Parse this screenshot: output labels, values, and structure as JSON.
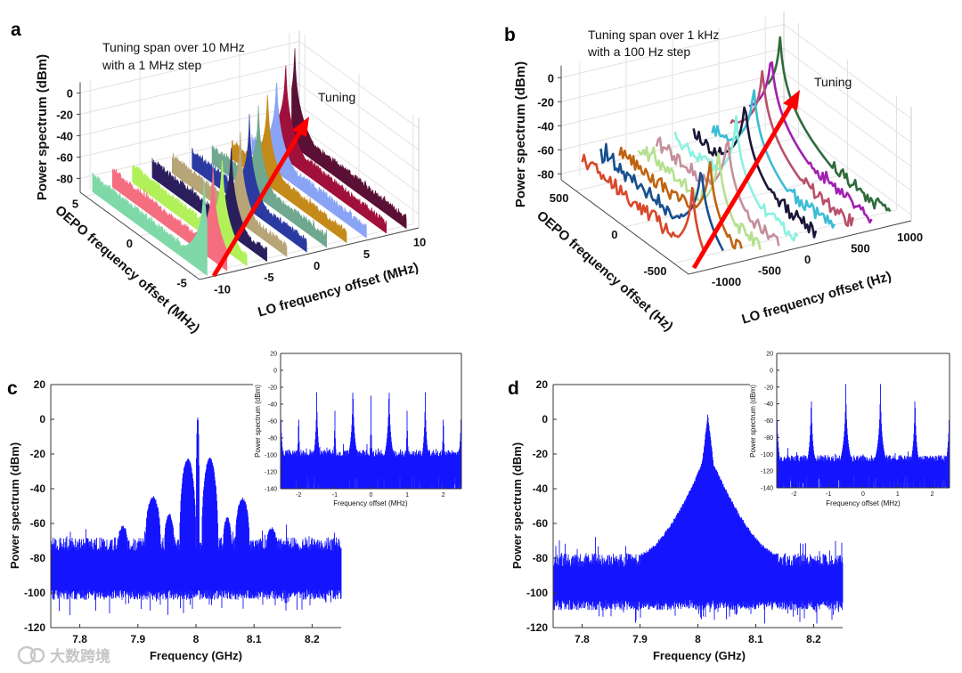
{
  "panel_labels": {
    "a": "a",
    "b": "b",
    "c": "c",
    "d": "d"
  },
  "watermark": "大数跨境",
  "chart_data": [
    {
      "id": "a",
      "type": "line",
      "style": "3d-waterfall-filled",
      "annotation_lines": [
        "Tuning span over 10 MHz",
        "with a 1 MHz step"
      ],
      "arrow_label": "Tuning",
      "zlabel": "Power spectrum (dBm)",
      "ylabel": "OEPO frequency offset (MHz)",
      "xlabel": "LO frequency offset (MHz)",
      "zticks": [
        0,
        -20,
        -40,
        -60,
        -80
      ],
      "yticks": [
        5,
        0,
        -5
      ],
      "xticks": [
        -10,
        -5,
        0,
        5,
        10
      ],
      "xlim": [
        -11,
        11
      ],
      "ylim": [
        -5.5,
        5.5
      ],
      "zlim": [
        -93,
        10
      ],
      "series": [
        {
          "lo": -10,
          "peak_oepo": -5,
          "peak_dbm": 0,
          "color": "#7fd8a8"
        },
        {
          "lo": -8,
          "peak_oepo": -4,
          "peak_dbm": 0,
          "color": "#f56e80"
        },
        {
          "lo": -6,
          "peak_oepo": -3,
          "peak_dbm": -2,
          "color": "#b2f05a"
        },
        {
          "lo": -4,
          "peak_oepo": -2,
          "peak_dbm": -4,
          "color": "#2a1f5c"
        },
        {
          "lo": -2,
          "peak_oepo": -1,
          "peak_dbm": -4,
          "color": "#b7a477"
        },
        {
          "lo": 0,
          "peak_oepo": 0,
          "peak_dbm": -3,
          "color": "#2a3aa0"
        },
        {
          "lo": 2,
          "peak_oepo": 1,
          "peak_dbm": -3,
          "color": "#6fa88e"
        },
        {
          "lo": 4,
          "peak_oepo": 2,
          "peak_dbm": -2,
          "color": "#c48a1a"
        },
        {
          "lo": 6,
          "peak_oepo": 3,
          "peak_dbm": 0,
          "color": "#8aa4f5"
        },
        {
          "lo": 8,
          "peak_oepo": 4,
          "peak_dbm": 2,
          "color": "#a0103a"
        },
        {
          "lo": 10,
          "peak_oepo": 5,
          "peak_dbm": 3,
          "color": "#5a0f35"
        }
      ],
      "noise_floor_dbm": [
        -83,
        -77
      ]
    },
    {
      "id": "b",
      "type": "line",
      "style": "3d-waterfall-lines",
      "annotation_lines": [
        "Tuning span over 1 kHz",
        "with a 100 Hz step"
      ],
      "arrow_label": "Tuning",
      "zlabel": "Power spectrum (dBm)",
      "ylabel": "OEPO frequency offset (Hz)",
      "xlabel": "LO frequency offset (Hz)",
      "zticks": [
        0,
        -20,
        -40,
        -60,
        -80
      ],
      "yticks": [
        500,
        0,
        -500
      ],
      "xticks": [
        -1000,
        -500,
        0,
        500,
        1000
      ],
      "xlim": [
        -1200,
        1200
      ],
      "ylim": [
        -650,
        650
      ],
      "zlim": [
        -85,
        10
      ],
      "series": [
        {
          "lo": -1000,
          "peak_oepo": -500,
          "peak_dbm": -25,
          "color": "#d9482b"
        },
        {
          "lo": -800,
          "peak_oepo": -400,
          "peak_dbm": -15,
          "color": "#16508f"
        },
        {
          "lo": -600,
          "peak_oepo": -300,
          "peak_dbm": -20,
          "color": "#c0620f"
        },
        {
          "lo": -400,
          "peak_oepo": -200,
          "peak_dbm": -22,
          "color": "#b5e08f"
        },
        {
          "lo": -200,
          "peak_oepo": -100,
          "peak_dbm": -18,
          "color": "#c4909c"
        },
        {
          "lo": 0,
          "peak_oepo": 0,
          "peak_dbm": -15,
          "color": "#8af2e0"
        },
        {
          "lo": 200,
          "peak_oepo": 100,
          "peak_dbm": -10,
          "color": "#1b1638"
        },
        {
          "lo": 400,
          "peak_oepo": 200,
          "peak_dbm": -8,
          "color": "#3cbcd6"
        },
        {
          "lo": 600,
          "peak_oepo": 300,
          "peak_dbm": -3,
          "color": "#b8506a"
        },
        {
          "lo": 800,
          "peak_oepo": 400,
          "peak_dbm": 0,
          "color": "#a020b0"
        },
        {
          "lo": 1000,
          "peak_oepo": 500,
          "peak_dbm": 3,
          "color": "#2f6b3c"
        }
      ],
      "noise_floor_dbm": [
        -78,
        -70
      ]
    },
    {
      "id": "c",
      "type": "area",
      "style": "spectrum-lobes",
      "xlabel": "Frequency (GHz)",
      "ylabel": "Power spectrum (dBm)",
      "xlim": [
        7.75,
        8.25
      ],
      "ylim": [
        -120,
        20
      ],
      "xticks": [
        7.8,
        7.9,
        8,
        8.1,
        8.2
      ],
      "yticks": [
        20,
        0,
        -20,
        -40,
        -60,
        -80,
        -100,
        -120
      ],
      "color": "#1414ff",
      "noise_floor_top_dbm": -72,
      "noise_floor_bottom_dbm": -98,
      "lobes": [
        {
          "freq": 7.874,
          "dbm": -62,
          "halfwidth": 0.008
        },
        {
          "freq": 7.926,
          "dbm": -45,
          "halfwidth": 0.013
        },
        {
          "freq": 7.954,
          "dbm": -55,
          "halfwidth": 0.008
        },
        {
          "freq": 7.986,
          "dbm": -23,
          "halfwidth": 0.014
        },
        {
          "freq": 8.003,
          "dbm": 2,
          "halfwidth": 0.003
        },
        {
          "freq": 8.024,
          "dbm": -23,
          "halfwidth": 0.014
        },
        {
          "freq": 8.054,
          "dbm": -57,
          "halfwidth": 0.007
        },
        {
          "freq": 8.08,
          "dbm": -46,
          "halfwidth": 0.012
        },
        {
          "freq": 8.13,
          "dbm": -63,
          "halfwidth": 0.008
        }
      ]
    },
    {
      "id": "c-inset",
      "type": "area",
      "style": "spectrum-spikes",
      "xlabel": "Frequency offset (MHz)",
      "ylabel": "Power spectrum (dBm)",
      "xlim": [
        -2.5,
        2.5
      ],
      "ylim": [
        -140,
        20
      ],
      "xticks": [
        -2,
        -1,
        0,
        1,
        2
      ],
      "yticks": [
        20,
        0,
        -20,
        -40,
        -60,
        -80,
        -100,
        -120,
        -140
      ],
      "color": "#1414ff",
      "noise_floor_top_dbm": -98,
      "noise_floor_bottom_dbm": -140,
      "peaks": [
        {
          "freq": -2.5,
          "dbm": -12
        },
        {
          "freq": -2,
          "dbm": -30
        },
        {
          "freq": -1.5,
          "dbm": -8
        },
        {
          "freq": -1,
          "dbm": -30
        },
        {
          "freq": -0.5,
          "dbm": 2
        },
        {
          "freq": 0,
          "dbm": -30
        },
        {
          "freq": 0.5,
          "dbm": 2
        },
        {
          "freq": 1,
          "dbm": -30
        },
        {
          "freq": 1.5,
          "dbm": -8
        },
        {
          "freq": 2,
          "dbm": -30
        },
        {
          "freq": 2.5,
          "dbm": -12
        }
      ]
    },
    {
      "id": "d",
      "type": "area",
      "style": "spectrum-envelope",
      "xlabel": "Frequency (GHz)",
      "ylabel": "Power spectrum (dBm)",
      "xlim": [
        7.75,
        8.25
      ],
      "ylim": [
        -120,
        20
      ],
      "xticks": [
        7.8,
        7.9,
        8,
        8.1,
        8.2
      ],
      "yticks": [
        20,
        0,
        -20,
        -40,
        -60,
        -80,
        -100,
        -120
      ],
      "color": "#1414ff",
      "noise_floor_top_dbm": -81,
      "noise_floor_bottom_dbm": -104,
      "envelope": {
        "center_freq": 8.017,
        "peak_dbm": 2,
        "base_dbm": -78,
        "left_edge_freq": 7.9,
        "right_edge_freq": 8.137
      }
    },
    {
      "id": "d-inset",
      "type": "area",
      "style": "spectrum-spikes",
      "xlabel": "Frequency offset (MHz)",
      "ylabel": "Power spectrum (dBm)",
      "xlim": [
        -2.5,
        2.5
      ],
      "ylim": [
        -140,
        20
      ],
      "xticks": [
        -2,
        -1,
        0,
        1,
        2
      ],
      "yticks": [
        20,
        0,
        -20,
        -40,
        -60,
        -80,
        -100,
        -120,
        -140
      ],
      "color": "#1414ff",
      "noise_floor_top_dbm": -105,
      "noise_floor_bottom_dbm": -140,
      "peaks": [
        {
          "freq": -2.5,
          "dbm": -12
        },
        {
          "freq": -1.5,
          "dbm": -8
        },
        {
          "freq": -0.5,
          "dbm": 2
        },
        {
          "freq": 0.5,
          "dbm": 2
        },
        {
          "freq": 1.5,
          "dbm": -8
        },
        {
          "freq": 2.5,
          "dbm": -12
        }
      ]
    }
  ]
}
